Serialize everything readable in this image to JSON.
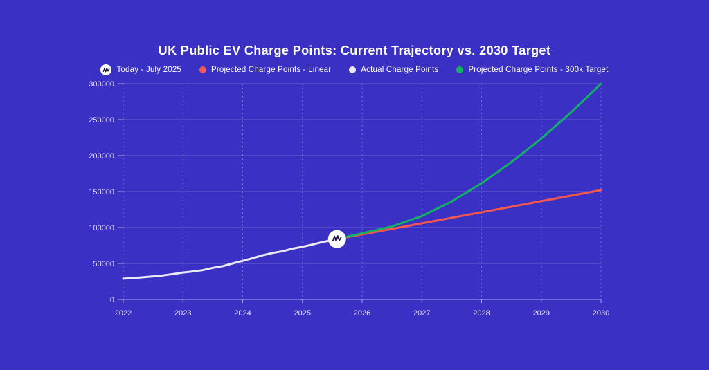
{
  "page": {
    "background_color": "#3a31c4"
  },
  "title": "UK Public EV Charge Points: Current Trajectory vs. 2030 Target",
  "legend": {
    "position": "top",
    "items": [
      {
        "label": "Today - July 2025",
        "marker": "logo-circle",
        "color": "#ffffff"
      },
      {
        "label": "Projected Charge Points - Linear",
        "marker": "dot",
        "color": "#f4574d"
      },
      {
        "label": "Actual Charge Points",
        "marker": "dot",
        "color": "#eae8f4"
      },
      {
        "label": "Projected Charge Points - 300k Target",
        "marker": "dot",
        "color": "#12b163"
      }
    ]
  },
  "chart_data": {
    "type": "line",
    "title": "UK Public EV Charge Points: Current Trajectory vs. 2030 Target",
    "xlabel": "",
    "ylabel": "",
    "xlim": [
      2022,
      2030
    ],
    "ylim": [
      0,
      300000
    ],
    "x_ticks": [
      2022,
      2023,
      2024,
      2025,
      2026,
      2027,
      2028,
      2029,
      2030
    ],
    "y_ticks": [
      0,
      50000,
      100000,
      150000,
      200000,
      250000,
      300000
    ],
    "grid": {
      "horizontal": "solid",
      "vertical": "dashed"
    },
    "legend_position": "top",
    "series": [
      {
        "name": "Actual Charge Points",
        "color": "#eae8f4",
        "style": "solid",
        "points": [
          [
            2022.0,
            28900
          ],
          [
            2022.17,
            29800
          ],
          [
            2022.33,
            30900
          ],
          [
            2022.5,
            32100
          ],
          [
            2022.67,
            33500
          ],
          [
            2022.83,
            35300
          ],
          [
            2023.0,
            37400
          ],
          [
            2023.17,
            38900
          ],
          [
            2023.33,
            40700
          ],
          [
            2023.5,
            43900
          ],
          [
            2023.67,
            46300
          ],
          [
            2023.83,
            50000
          ],
          [
            2024.0,
            53700
          ],
          [
            2024.17,
            57400
          ],
          [
            2024.33,
            61300
          ],
          [
            2024.5,
            64600
          ],
          [
            2024.67,
            67000
          ],
          [
            2024.83,
            70600
          ],
          [
            2025.0,
            73300
          ],
          [
            2025.17,
            76300
          ],
          [
            2025.33,
            79600
          ],
          [
            2025.58,
            84000
          ]
        ]
      },
      {
        "name": "Projected Charge Points - Linear",
        "color": "#f4574d",
        "style": "solid",
        "points": [
          [
            2025.58,
            84000
          ],
          [
            2030,
            152000
          ]
        ]
      },
      {
        "name": "Projected Charge Points - 300k Target",
        "color": "#12b163",
        "style": "solid",
        "points": [
          [
            2025.58,
            84000
          ],
          [
            2026,
            92000
          ],
          [
            2026.5,
            101500
          ],
          [
            2027,
            116000
          ],
          [
            2027.5,
            136300
          ],
          [
            2028,
            161500
          ],
          [
            2028.5,
            191000
          ],
          [
            2029,
            223700
          ],
          [
            2029.5,
            260200
          ],
          [
            2030,
            300000
          ]
        ]
      }
    ],
    "annotations": [
      {
        "type": "point-marker",
        "label": "Today - July 2025",
        "x": 2025.58,
        "y": 84000,
        "marker": "white-circle-logo"
      }
    ]
  }
}
